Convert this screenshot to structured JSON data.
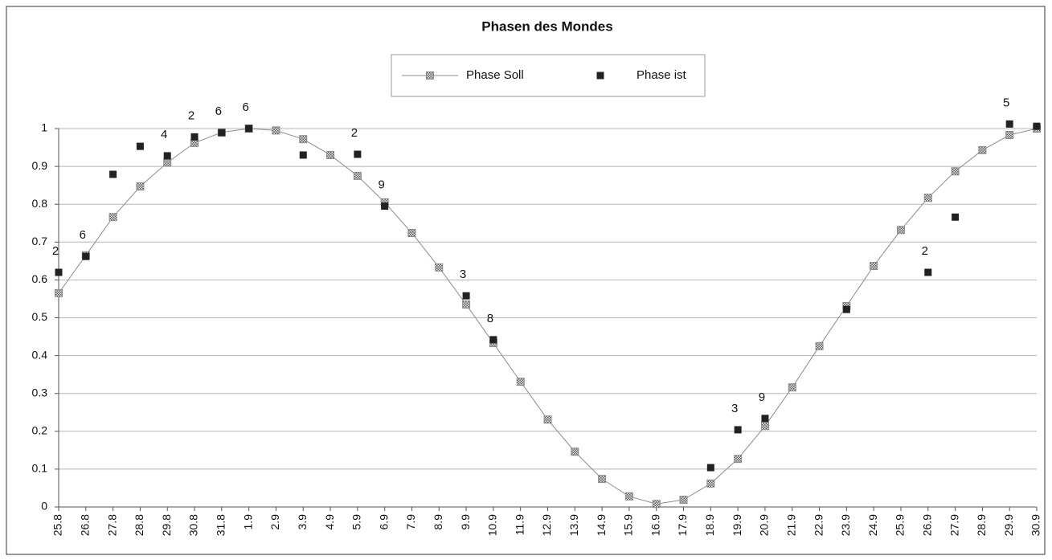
{
  "chart_data": {
    "type": "line",
    "title": "Phasen des Mondes",
    "categories": [
      "25.8",
      "26.8",
      "27.8",
      "28.8",
      "29.8",
      "30.8",
      "31.8",
      "1.9",
      "2.9",
      "3.9",
      "4.9",
      "5.9",
      "6.9",
      "7.9",
      "8.9",
      "9.9",
      "10.9",
      "11.9",
      "12.9",
      "13.9",
      "14.9",
      "15.9",
      "16.9",
      "17.9",
      "18.9",
      "19.9",
      "20.9",
      "21.9",
      "22.9",
      "23.9",
      "24.9",
      "25.9",
      "26.9",
      "27.9",
      "28.9",
      "29.9",
      "30.9"
    ],
    "series": [
      {
        "name": "Phase Soll",
        "color": "#8c8c8c",
        "marker": "hatched",
        "line": true,
        "values": [
          0.565,
          0.665,
          0.766,
          0.847,
          0.91,
          0.962,
          0.99,
          1.0,
          0.995,
          0.972,
          0.93,
          0.875,
          0.805,
          0.724,
          0.633,
          0.535,
          0.433,
          0.331,
          0.231,
          0.146,
          0.074,
          0.028,
          0.008,
          0.019,
          0.062,
          0.127,
          0.214,
          0.316,
          0.425,
          0.531,
          0.637,
          0.732,
          0.817,
          0.887,
          0.943,
          0.983,
          1.0
        ]
      },
      {
        "name": "Phase ist",
        "color": "#222222",
        "marker": "square",
        "line": false,
        "values": [
          0.62,
          0.662,
          0.879,
          0.953,
          0.928,
          0.978,
          0.989,
          1.0,
          null,
          0.93,
          null,
          0.932,
          0.795,
          null,
          null,
          0.558,
          0.442,
          null,
          null,
          null,
          null,
          null,
          null,
          null,
          0.104,
          0.204,
          0.234,
          null,
          null,
          0.522,
          null,
          null,
          0.62,
          0.766,
          null,
          1.012,
          1.006
        ]
      }
    ],
    "annotations": [
      {
        "category": 0,
        "text": "2"
      },
      {
        "category": 1,
        "text": "6"
      },
      {
        "category": 4,
        "text": "4"
      },
      {
        "category": 5,
        "text": "2"
      },
      {
        "category": 6,
        "text": "6"
      },
      {
        "category": 7,
        "text": "6"
      },
      {
        "category": 11,
        "text": "2"
      },
      {
        "category": 12,
        "text": "9"
      },
      {
        "category": 15,
        "text": "3"
      },
      {
        "category": 16,
        "text": "8"
      },
      {
        "category": 25,
        "text": "3"
      },
      {
        "category": 26,
        "text": "9"
      },
      {
        "category": 32,
        "text": "2"
      },
      {
        "category": 35,
        "text": "5"
      }
    ],
    "ylim": [
      0,
      1
    ],
    "yticks": [
      0,
      0.1,
      0.2,
      0.3,
      0.4,
      0.5,
      0.6,
      0.7,
      0.8,
      0.9,
      1
    ],
    "grid": true,
    "legend": "top"
  }
}
